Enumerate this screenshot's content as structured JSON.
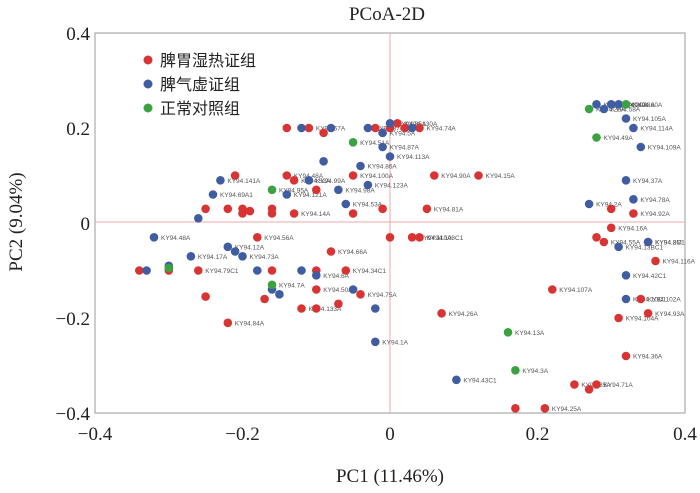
{
  "chart_data": {
    "type": "scatter",
    "title": "PCoA-2D",
    "xlabel": "PC1 (11.46%)",
    "ylabel": "PC2 (9.04%)",
    "xlim": [
      -0.4,
      0.4
    ],
    "ylim": [
      -0.4,
      0.4
    ],
    "xticks": [
      "−0.4",
      "−0.2",
      "0",
      "0.2",
      "0.4"
    ],
    "yticks": [
      "0.4",
      "0.2",
      "0",
      "−0.2",
      "−0.4"
    ],
    "reference_lines": {
      "x": 0,
      "y": 0
    },
    "legend_position": "top-left",
    "series": [
      {
        "name": "脾胃湿热证组",
        "color": "#d93434",
        "points": [
          {
            "x": -0.34,
            "y": -0.1,
            "label": ""
          },
          {
            "x": -0.3,
            "y": -0.1,
            "label": ""
          },
          {
            "x": -0.26,
            "y": -0.1,
            "label": "KY94.79C1"
          },
          {
            "x": -0.25,
            "y": 0.03,
            "label": ""
          },
          {
            "x": -0.25,
            "y": -0.155,
            "label": ""
          },
          {
            "x": -0.22,
            "y": -0.21,
            "label": "KY94.84A"
          },
          {
            "x": -0.22,
            "y": 0.03,
            "label": ""
          },
          {
            "x": -0.21,
            "y": 0.1,
            "label": ""
          },
          {
            "x": -0.2,
            "y": 0.03,
            "label": ""
          },
          {
            "x": -0.2,
            "y": 0.02,
            "label": ""
          },
          {
            "x": -0.19,
            "y": 0.025,
            "label": ""
          },
          {
            "x": -0.18,
            "y": -0.03,
            "label": "KY94.56A"
          },
          {
            "x": -0.17,
            "y": -0.16,
            "label": ""
          },
          {
            "x": -0.16,
            "y": 0.03,
            "label": ""
          },
          {
            "x": -0.16,
            "y": -0.1,
            "label": ""
          },
          {
            "x": -0.16,
            "y": 0.02,
            "label": ""
          },
          {
            "x": -0.14,
            "y": 0.1,
            "label": "KY94.48A"
          },
          {
            "x": -0.14,
            "y": 0.2,
            "label": ""
          },
          {
            "x": -0.13,
            "y": 0.02,
            "label": "KY94.14A"
          },
          {
            "x": -0.13,
            "y": 0.09,
            "label": "KY94.52A"
          },
          {
            "x": -0.12,
            "y": -0.18,
            "label": "KY94.133A"
          },
          {
            "x": -0.11,
            "y": 0.2,
            "label": "KY94.67A"
          },
          {
            "x": -0.1,
            "y": -0.1,
            "label": ""
          },
          {
            "x": -0.1,
            "y": 0.07,
            "label": ""
          },
          {
            "x": -0.1,
            "y": -0.14,
            "label": "KY94.50A"
          },
          {
            "x": -0.1,
            "y": -0.18,
            "label": ""
          },
          {
            "x": -0.09,
            "y": 0.19,
            "label": ""
          },
          {
            "x": -0.08,
            "y": -0.06,
            "label": "KY94.66A"
          },
          {
            "x": -0.07,
            "y": -0.17,
            "label": ""
          },
          {
            "x": -0.06,
            "y": -0.1,
            "label": "KY94.34C1"
          },
          {
            "x": -0.05,
            "y": 0.02,
            "label": ""
          },
          {
            "x": -0.05,
            "y": 0.1,
            "label": "KY94.100A"
          },
          {
            "x": -0.04,
            "y": -0.15,
            "label": "KY94.75A"
          },
          {
            "x": -0.02,
            "y": 0.2,
            "label": ""
          },
          {
            "x": -0.01,
            "y": 0.19,
            "label": "KY94.5A"
          },
          {
            "x": -0.01,
            "y": 0.03,
            "label": ""
          },
          {
            "x": 0,
            "y": 0.2,
            "label": ""
          },
          {
            "x": 0,
            "y": -0.03,
            "label": ""
          },
          {
            "x": 0.01,
            "y": 0.21,
            "label": "KY94.130A"
          },
          {
            "x": 0.02,
            "y": 0.2,
            "label": ""
          },
          {
            "x": 0.03,
            "y": -0.03,
            "label": "KY94.110A"
          },
          {
            "x": 0.04,
            "y": 0.2,
            "label": "KY94.74A"
          },
          {
            "x": 0.04,
            "y": -0.03,
            "label": "KY94.108C1"
          },
          {
            "x": 0.05,
            "y": 0.03,
            "label": "KY94.81A"
          },
          {
            "x": 0.06,
            "y": 0.1,
            "label": "KY94.90A"
          },
          {
            "x": 0.07,
            "y": -0.19,
            "label": "KY94.26A"
          },
          {
            "x": 0.12,
            "y": 0.1,
            "label": "KY94.15A"
          },
          {
            "x": 0.17,
            "y": -0.39,
            "label": ""
          },
          {
            "x": 0.21,
            "y": -0.39,
            "label": "KY94.25A"
          },
          {
            "x": 0.22,
            "y": -0.14,
            "label": "KY94.107A"
          },
          {
            "x": 0.25,
            "y": -0.34,
            "label": "KY94.35A"
          },
          {
            "x": 0.27,
            "y": -0.35,
            "label": ""
          },
          {
            "x": 0.28,
            "y": -0.34,
            "label": "KY94.71A"
          },
          {
            "x": 0.28,
            "y": -0.03,
            "label": ""
          },
          {
            "x": 0.29,
            "y": -0.04,
            "label": "KY94.55A"
          },
          {
            "x": 0.3,
            "y": -0.01,
            "label": "KY94.16A"
          },
          {
            "x": 0.3,
            "y": 0.03,
            "label": ""
          },
          {
            "x": 0.31,
            "y": -0.2,
            "label": "KY94.104A"
          },
          {
            "x": 0.32,
            "y": -0.28,
            "label": "KY94.36A"
          },
          {
            "x": 0.33,
            "y": 0.02,
            "label": "KY94.92A"
          },
          {
            "x": 0.34,
            "y": -0.16,
            "label": "KY94.102A"
          },
          {
            "x": 0.35,
            "y": -0.04,
            "label": "KY94.8C1"
          },
          {
            "x": 0.35,
            "y": -0.19,
            "label": "KY94.93A"
          },
          {
            "x": 0.36,
            "y": -0.08,
            "label": "KY94.116A"
          }
        ]
      },
      {
        "name": "脾气虚证组",
        "color": "#3f5da0",
        "points": [
          {
            "x": -0.32,
            "y": -0.03,
            "label": "KY94.48A"
          },
          {
            "x": -0.33,
            "y": -0.1,
            "label": ""
          },
          {
            "x": -0.3,
            "y": -0.09,
            "label": ""
          },
          {
            "x": -0.27,
            "y": -0.07,
            "label": "KY94.17A"
          },
          {
            "x": -0.26,
            "y": 0.01,
            "label": ""
          },
          {
            "x": -0.24,
            "y": 0.06,
            "label": "KY94.69A1"
          },
          {
            "x": -0.23,
            "y": 0.09,
            "label": "KY94.141A"
          },
          {
            "x": -0.22,
            "y": -0.05,
            "label": "KY94.12A"
          },
          {
            "x": -0.21,
            "y": -0.06,
            "label": ""
          },
          {
            "x": -0.2,
            "y": -0.07,
            "label": "KY94.73A"
          },
          {
            "x": -0.18,
            "y": -0.1,
            "label": ""
          },
          {
            "x": -0.16,
            "y": -0.14,
            "label": ""
          },
          {
            "x": -0.15,
            "y": -0.15,
            "label": ""
          },
          {
            "x": -0.14,
            "y": 0.06,
            "label": "KY94.121A"
          },
          {
            "x": -0.12,
            "y": 0.2,
            "label": ""
          },
          {
            "x": -0.12,
            "y": -0.1,
            "label": ""
          },
          {
            "x": -0.11,
            "y": 0.09,
            "label": "KY94.99A"
          },
          {
            "x": -0.1,
            "y": -0.11,
            "label": "KY94.6A"
          },
          {
            "x": -0.09,
            "y": 0.13,
            "label": ""
          },
          {
            "x": -0.08,
            "y": 0.2,
            "label": ""
          },
          {
            "x": -0.07,
            "y": 0.07,
            "label": "KY94.98A"
          },
          {
            "x": -0.06,
            "y": 0.04,
            "label": "KY94.53A"
          },
          {
            "x": -0.05,
            "y": -0.14,
            "label": ""
          },
          {
            "x": -0.04,
            "y": 0.12,
            "label": "KY94.86A"
          },
          {
            "x": -0.03,
            "y": 0.08,
            "label": "KY94.123A"
          },
          {
            "x": -0.03,
            "y": 0.2,
            "label": "KY94.37C1"
          },
          {
            "x": -0.02,
            "y": -0.18,
            "label": ""
          },
          {
            "x": -0.01,
            "y": 0.19,
            "label": ""
          },
          {
            "x": -0.01,
            "y": 0.16,
            "label": "KY94.87A"
          },
          {
            "x": 0,
            "y": 0.21,
            "label": "KY94.86A"
          },
          {
            "x": 0,
            "y": 0.14,
            "label": "KY94.113A"
          },
          {
            "x": -0.02,
            "y": -0.25,
            "label": "KY94.1A"
          },
          {
            "x": 0.03,
            "y": 0.2,
            "label": ""
          },
          {
            "x": 0.09,
            "y": -0.33,
            "label": "KY94.43C1"
          },
          {
            "x": 0.27,
            "y": 0.04,
            "label": "KY94.2A"
          },
          {
            "x": 0.28,
            "y": 0.25,
            "label": "KY94.59A"
          },
          {
            "x": 0.29,
            "y": 0.24,
            "label": "KY94.58A"
          },
          {
            "x": 0.3,
            "y": 0.25,
            "label": "KY94.29A"
          },
          {
            "x": 0.31,
            "y": 0.25,
            "label": "KY94.38A"
          },
          {
            "x": 0.32,
            "y": 0.22,
            "label": "KY94.105A"
          },
          {
            "x": 0.33,
            "y": 0.2,
            "label": "KY94.114A"
          },
          {
            "x": 0.32,
            "y": 0.09,
            "label": "KY94.37A"
          },
          {
            "x": 0.33,
            "y": 0.05,
            "label": "KY94.78A"
          },
          {
            "x": 0.34,
            "y": 0.16,
            "label": "KY94.109A"
          },
          {
            "x": 0.31,
            "y": -0.05,
            "label": "KY94.13BC1"
          },
          {
            "x": 0.32,
            "y": -0.11,
            "label": "KY94.42C1"
          },
          {
            "x": 0.32,
            "y": -0.16,
            "label": "KY94.10C1"
          },
          {
            "x": 0.35,
            "y": -0.04,
            "label": "KY94.2M"
          }
        ]
      },
      {
        "name": "正常对照组",
        "color": "#3aa241",
        "points": [
          {
            "x": -0.3,
            "y": -0.095,
            "label": ""
          },
          {
            "x": -0.16,
            "y": 0.07,
            "label": "KY94.95A"
          },
          {
            "x": -0.16,
            "y": -0.13,
            "label": "KY94.7A"
          },
          {
            "x": -0.05,
            "y": 0.17,
            "label": "KY94.51A"
          },
          {
            "x": 0.16,
            "y": -0.23,
            "label": "KY94.13A"
          },
          {
            "x": 0.17,
            "y": -0.31,
            "label": "KY94.3A"
          },
          {
            "x": 0.27,
            "y": 0.24,
            "label": "KY94.28A"
          },
          {
            "x": 0.28,
            "y": 0.18,
            "label": "KY94.49A"
          },
          {
            "x": 0.32,
            "y": 0.25,
            "label": "KY94.60A"
          }
        ]
      }
    ]
  }
}
